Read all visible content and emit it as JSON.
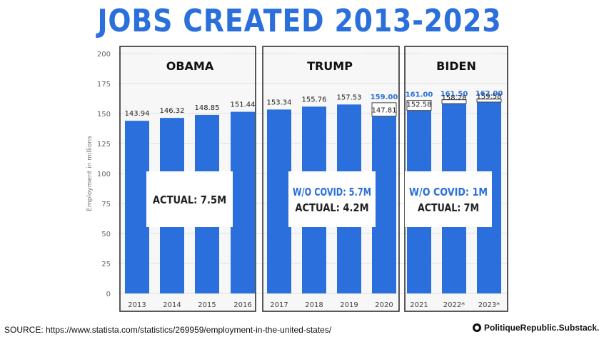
{
  "title": "JOBS CREATED 2013-2023",
  "source": "SOURCE: https://www.statista.com/statistics/269959/employment-in-the-united-states/",
  "credit": "PolitiqueRepublic.Substack.com",
  "colors": {
    "bar": "#2a6fdb",
    "title": "#2a6fdb",
    "highlight": "#2a6fdb"
  },
  "chart_data": {
    "type": "bar",
    "title": "",
    "xlabel": "",
    "ylabel": "Employment in millions",
    "ylim": [
      0,
      200
    ],
    "yticks": [
      0,
      25,
      50,
      75,
      100,
      125,
      150,
      175,
      200
    ],
    "grid": true,
    "categories": [
      "2013",
      "2014",
      "2015",
      "2016",
      "2017",
      "2018",
      "2019",
      "2020",
      "2021",
      "2022*",
      "2023*"
    ],
    "values": [
      143.94,
      146.32,
      148.85,
      151.44,
      153.34,
      155.76,
      157.53,
      147.81,
      152.58,
      158.28,
      159.58
    ],
    "value_labels": [
      "143.94",
      "146.32",
      "148.85",
      "151.44",
      "153.34",
      "155.76",
      "157.53",
      "147.81",
      "152.58",
      "158.28",
      "159.58"
    ],
    "projections": [
      {
        "category": "2020",
        "value": 159.0,
        "label": "159.00"
      },
      {
        "category": "2021",
        "value": 161.0,
        "label": "161.00"
      },
      {
        "category": "2022*",
        "value": 161.5,
        "label": "161.50"
      },
      {
        "category": "2023*",
        "value": 162.0,
        "label": "162.00"
      }
    ],
    "groups": [
      {
        "name": "OBAMA",
        "start": 0,
        "end": 3,
        "annotation": [
          "ACTUAL: 7.5M"
        ]
      },
      {
        "name": "TRUMP",
        "start": 4,
        "end": 7,
        "annotation": [
          "W/O COVID: 5.7M",
          "ACTUAL: 4.2M"
        ]
      },
      {
        "name": "BIDEN",
        "start": 8,
        "end": 10,
        "annotation": [
          "W/O COVID: 1M",
          "ACTUAL: 7M"
        ]
      }
    ]
  }
}
